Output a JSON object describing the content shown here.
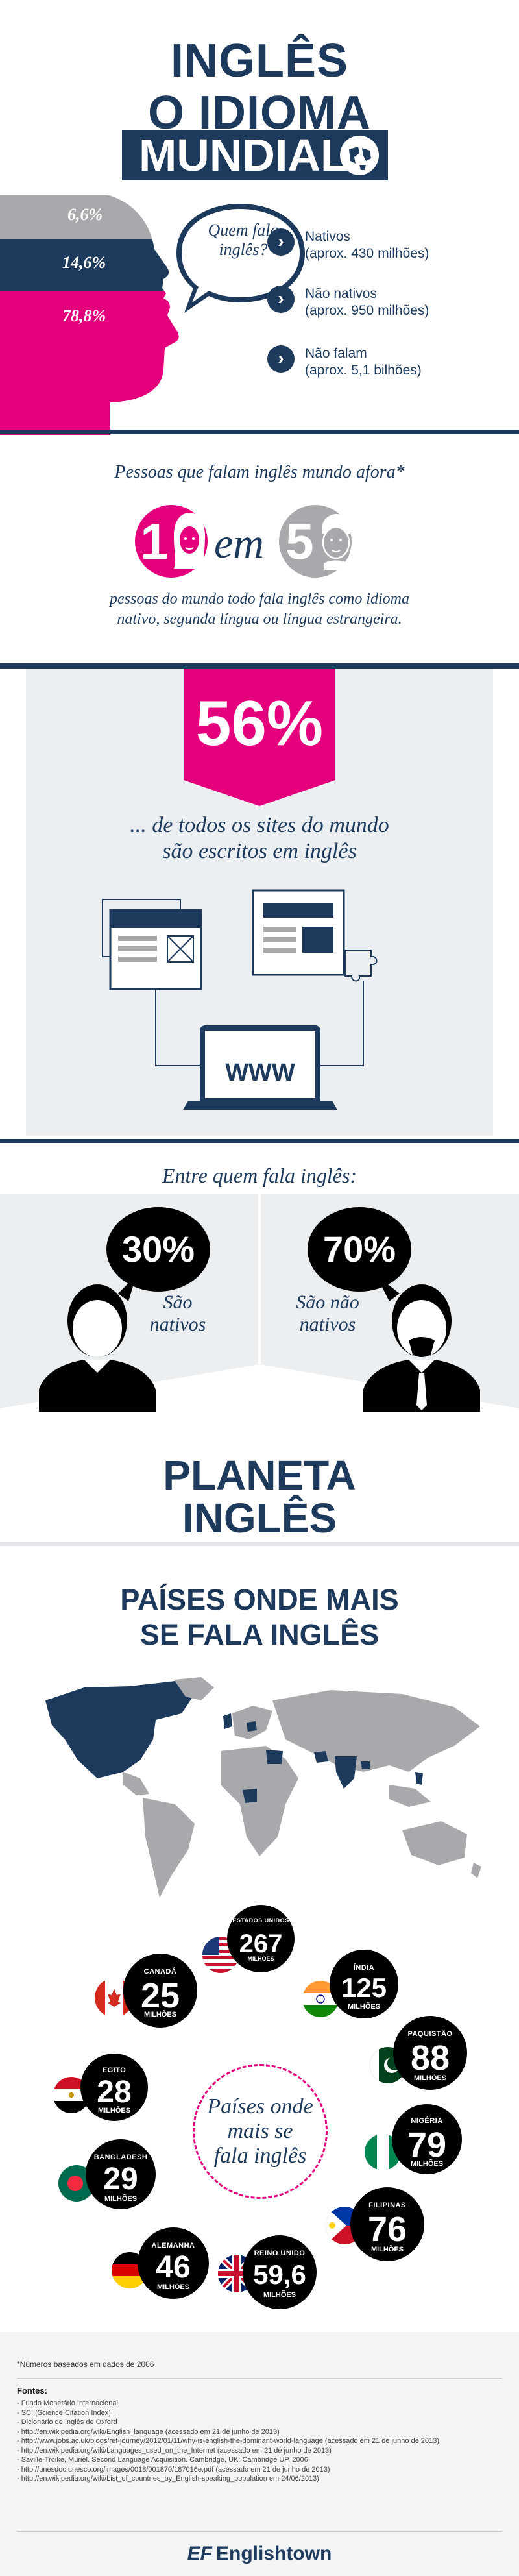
{
  "header": {
    "line1": "INGLÊS",
    "line2": "O IDIOMA",
    "line3": "MUNDIAL"
  },
  "speakers": {
    "pcts": [
      "6,6%",
      "14,6%",
      "78,8%"
    ],
    "bubble": "Quem fala inglês?",
    "legend": [
      {
        "label": "Nativos",
        "detail": "(aprox. 430 milhões)"
      },
      {
        "label": "Não nativos",
        "detail": "(aprox. 950 milhões)"
      },
      {
        "label": "Não falam",
        "detail": "(aprox. 5,1 bilhões)"
      }
    ]
  },
  "ratio": {
    "title": "Pessoas que falam inglês mundo afora*",
    "one": "1",
    "em": "em",
    "five": "5",
    "description_line1": "pessoas do mundo todo fala inglês como idioma",
    "description_line2": "nativo, segunda língua ou língua estrangeira."
  },
  "sites": {
    "pct": "56%",
    "line1": "... de todos os sites do mundo",
    "line2": "são escritos em inglês",
    "www": "WWW"
  },
  "speaker_split": {
    "title": "Entre quem fala inglês:",
    "natives_pct": "30%",
    "natives_line1": "São",
    "natives_line2": "nativos",
    "nonnatives_pct": "70%",
    "nonnatives_line1": "São não",
    "nonnatives_line2": "nativos"
  },
  "planeta": {
    "line1": "PLANETA",
    "line2": "INGLÊS"
  },
  "countries_section": {
    "title_line1": "PAÍSES ONDE MAIS",
    "title_line2": "SE FALA INGLÊS",
    "center_line1": "Países onde",
    "center_line2": "mais se",
    "center_line3": "fala inglês",
    "countries": [
      {
        "name": "ESTADOS UNIDOS",
        "value": "267",
        "unit": "MILHÕES"
      },
      {
        "name": "CANADÁ",
        "value": "25",
        "unit": "MILHÕES"
      },
      {
        "name": "ÍNDIA",
        "value": "125",
        "unit": "MILHÕES"
      },
      {
        "name": "PAQUISTÃO",
        "value": "88",
        "unit": "MILHÕES"
      },
      {
        "name": "EGITO",
        "value": "28",
        "unit": "MILHÕES"
      },
      {
        "name": "NIGÉRIA",
        "value": "79",
        "unit": "MILHÕES"
      },
      {
        "name": "BANGLADESH",
        "value": "29",
        "unit": "MILHÕES"
      },
      {
        "name": "FILIPINAS",
        "value": "76",
        "unit": "MILHÕES"
      },
      {
        "name": "ALEMANHA",
        "value": "46",
        "unit": "MILHÕES"
      },
      {
        "name": "REINO UNIDO",
        "value": "59,6",
        "unit": "MILHÕES"
      }
    ]
  },
  "footer": {
    "note": "*Números baseados em dados de 2006",
    "fontes_title": "Fontes:",
    "fontes": [
      "- Fundo Monetário Internacional",
      "- SCI (Science Citation Index)",
      "- Dicionário de Inglês de Oxford",
      "- http://en.wikipedia.org/wiki/English_language (acessado em 21 de junho de 2013)",
      "- http://www.jobs.ac.uk/blogs/ref-journey/2012/01/11/why-is-english-the-dominant-world-language (acessado em 21 de junho de 2013)",
      "- http://en.wikipedia.org/wiki/Languages_used_on_the_Internet (acessado em 21 de junho de 2013)",
      "- Saville-Troike, Muriel. Second Language Acquisition. Cambridge, UK: Cambridge UP, 2006",
      "- http://unesdoc.unesco.org/images/0018/001870/187016e.pdf (acessado em 21 de junho de 2013)",
      "- http://en.wikipedia.org/wiki/List_of_countries_by_English-speaking_population em 24/06/2013)"
    ],
    "brand_ef": "EF",
    "brand_name": "Englishtown"
  },
  "colors": {
    "navy": "#1d3a5c",
    "pink": "#e4007c",
    "grey": "#a7a9ac"
  }
}
